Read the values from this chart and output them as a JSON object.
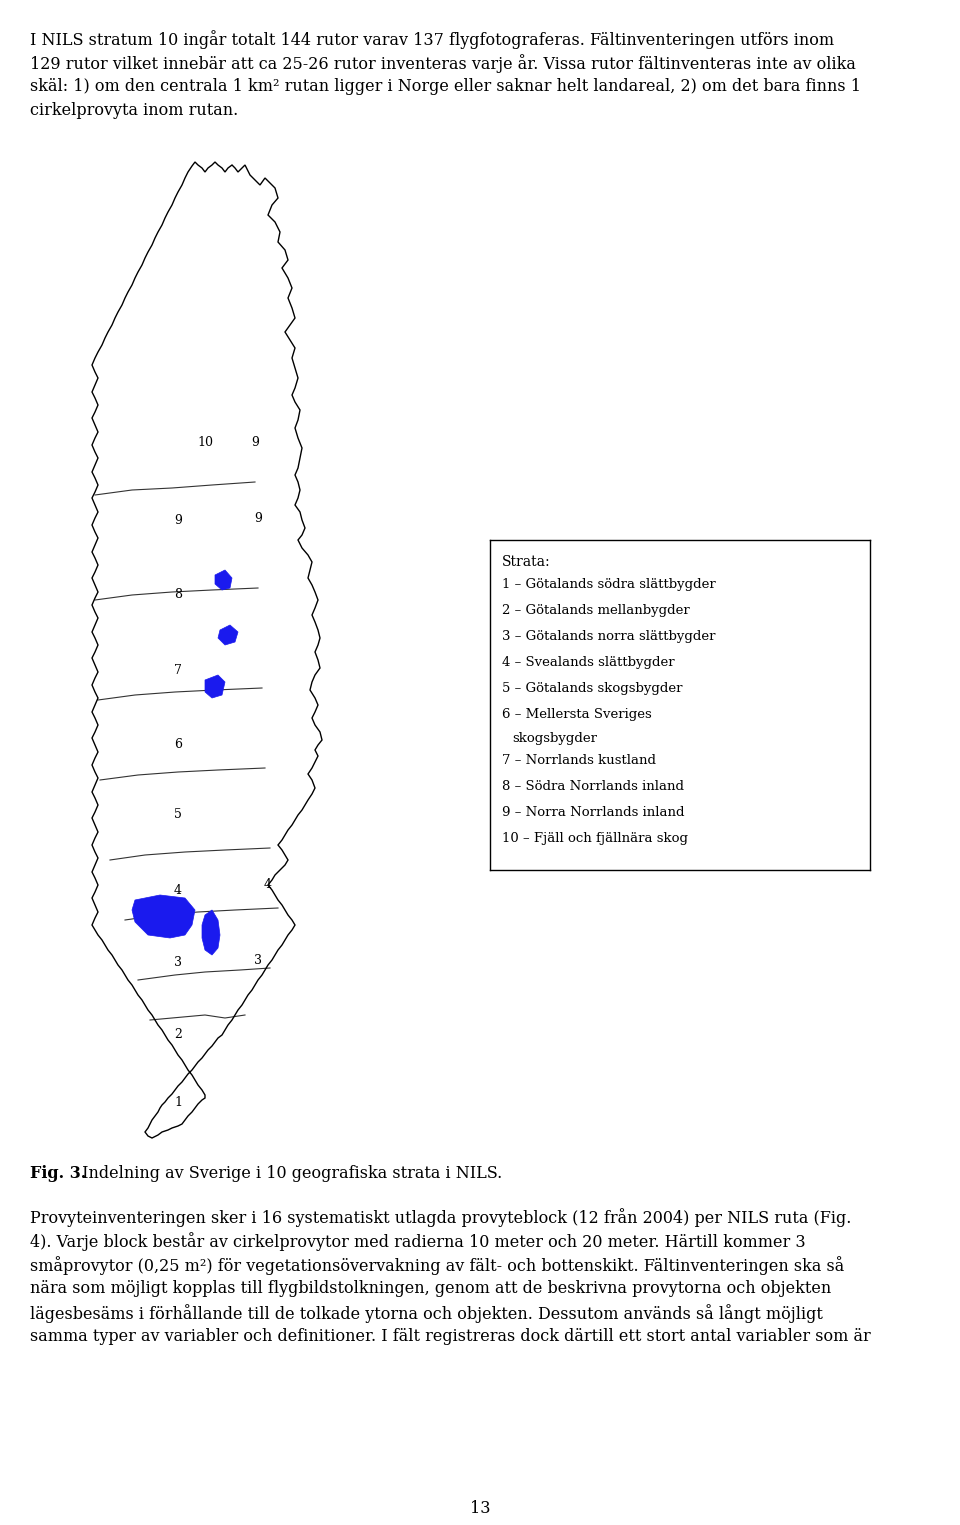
{
  "background_color": "#ffffff",
  "page_number": "13",
  "top_lines": [
    "I NILS stratum 10 ingår totalt 144 rutor varav 137 flygfotograferas. Fältinventeringen utförs inom",
    "129 rutor vilket innebär att ca 25-26 rutor inventeras varje år. Vissa rutor fältinventeras inte av olika",
    "skäl: 1) om den centrala 1 km² rutan ligger i Norge eller saknar helt landareal, 2) om det bara finns 1",
    "cirkelprovyta inom rutan."
  ],
  "legend_title": "Strata:",
  "legend_items": [
    "1 – Götalands södra slättbygder",
    "2 – Götalands mellanbygder",
    "3 – Götalands norra slättbygder",
    "4 – Svealands slättbygder",
    "5 – Götalands skogsbygder",
    "6 – Mellersta Sveriges",
    "  skogsbygder",
    "7 – Norrlands kustland",
    "8 – Södra Norrlands inland",
    "9 – Norra Norrlands inland",
    "10 – Fjäll och fjällnära skog"
  ],
  "fig_caption_bold": "Fig. 3.",
  "fig_caption_rest": " Indelning av Sverige i 10 geografiska strata i NILS.",
  "bottom_lines": [
    "Provyteinventeringen sker i 16 systematiskt utlagda provyteblock (12 från 2004) per NILS ruta (Fig.",
    "4). Varje block består av cirkelprovytor med radierna 10 meter och 20 meter. Härtill kommer 3",
    "småprovytor (0,25 m²) för vegetationsövervakning av fält- och bottenskikt. Fältinventeringen ska så",
    "nära som möjligt kopplas till flygbildstolkningen, genom att de beskrivna provytorna och objekten",
    "lägesbesäms i förhållande till de tolkade ytorna och objekten. Dessutom används så långt möjligt",
    "samma typer av variabler och definitioner. I fält registreras dock därtill ett stort antal variabler som är"
  ],
  "body_fontsize": 11.5,
  "legend_fontsize": 9.5,
  "caption_fontsize": 11.5,
  "page_fontsize": 11.5
}
